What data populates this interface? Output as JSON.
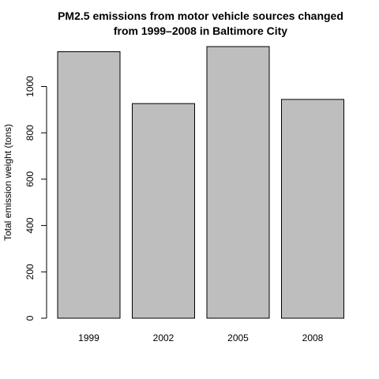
{
  "chart_data": {
    "type": "bar",
    "title_lines": [
      "PM2.5 emissions from motor vehicle sources changed",
      "from 1999–2008 in Baltimore City"
    ],
    "xlabel": "",
    "ylabel": "Total emission weight (tons)",
    "categories": [
      "1999",
      "2002",
      "2005",
      "2008"
    ],
    "values": [
      1150,
      926,
      1172,
      944
    ],
    "ylim": [
      0,
      1172
    ],
    "yticks": [
      0,
      200,
      400,
      600,
      800,
      1000
    ],
    "bar_color": "#bebebe",
    "grid": false,
    "legend": "none"
  }
}
